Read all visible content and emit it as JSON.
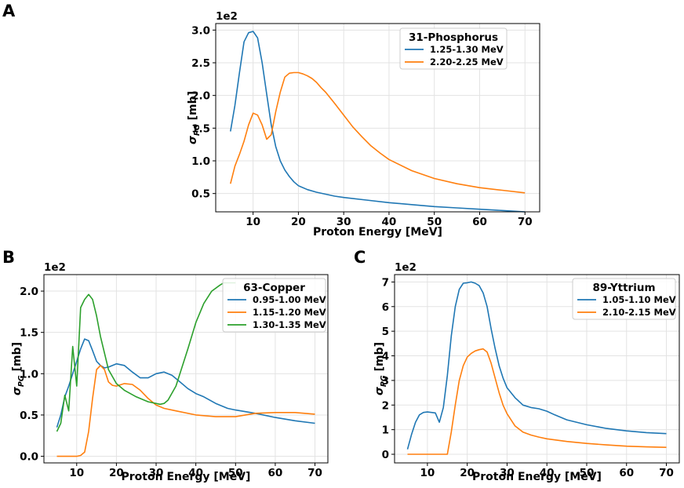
{
  "chart_data": [
    {
      "panel": "A",
      "type": "line",
      "title": "",
      "legend_title": "31-Phosphorus",
      "legend_location": "top-right",
      "xlabel": "Proton Energy [MeV]",
      "ylabel": "σ_PG [mb]",
      "ylabel_main": "σ",
      "ylabel_sub": "PG",
      "ylabel_unit": "[mb]",
      "multiplier": "1e2",
      "xlim": [
        1.75,
        73.25
      ],
      "ylim": [
        0.22,
        3.1
      ],
      "xticks": [
        10,
        20,
        30,
        40,
        50,
        60,
        70
      ],
      "yticks": [
        0.5,
        1.0,
        1.5,
        2.0,
        2.5,
        3.0
      ],
      "ytick_labels": [
        "0.5",
        "1.0",
        "1.5",
        "2.0",
        "2.5",
        "3.0"
      ],
      "grid": true,
      "series": [
        {
          "name": "1.25-1.30 MeV",
          "color": "#1f77b4",
          "x": [
            5,
            6,
            7,
            8,
            9,
            10,
            11,
            12,
            13,
            14,
            15,
            16,
            17,
            18,
            19,
            20,
            22,
            24,
            26,
            28,
            30,
            35,
            40,
            45,
            50,
            55,
            60,
            65,
            70
          ],
          "y": [
            1.45,
            1.85,
            2.35,
            2.82,
            2.96,
            2.98,
            2.88,
            2.5,
            2.02,
            1.55,
            1.22,
            1.0,
            0.86,
            0.76,
            0.68,
            0.62,
            0.56,
            0.52,
            0.49,
            0.46,
            0.44,
            0.4,
            0.36,
            0.33,
            0.3,
            0.28,
            0.26,
            0.24,
            0.22
          ]
        },
        {
          "name": "2.20-2.25 MeV",
          "color": "#ff7f0e",
          "x": [
            5,
            6,
            7,
            8,
            9,
            10,
            11,
            12,
            13,
            14,
            15,
            16,
            17,
            18,
            19,
            20,
            21,
            22,
            23,
            24,
            25,
            26,
            28,
            30,
            32,
            34,
            36,
            38,
            40,
            45,
            50,
            55,
            60,
            65,
            70
          ],
          "y": [
            0.65,
            0.92,
            1.1,
            1.3,
            1.55,
            1.73,
            1.7,
            1.55,
            1.33,
            1.4,
            1.75,
            2.05,
            2.28,
            2.34,
            2.35,
            2.35,
            2.33,
            2.3,
            2.26,
            2.2,
            2.12,
            2.05,
            1.88,
            1.7,
            1.52,
            1.37,
            1.23,
            1.12,
            1.02,
            0.85,
            0.73,
            0.65,
            0.59,
            0.55,
            0.51
          ]
        }
      ]
    },
    {
      "panel": "B",
      "type": "line",
      "title": "",
      "legend_title": "63-Copper",
      "legend_location": "top-right",
      "xlabel": "Proton Energy [MeV]",
      "ylabel": "σ_PG [mb]",
      "ylabel_main": "σ",
      "ylabel_sub": "PG",
      "ylabel_unit": "[mb]",
      "multiplier": "1e2",
      "xlim": [
        1.75,
        73.25
      ],
      "ylim": [
        -0.08,
        2.2
      ],
      "xticks": [
        10,
        20,
        30,
        40,
        50,
        60,
        70
      ],
      "yticks": [
        0.0,
        0.5,
        1.0,
        1.5,
        2.0
      ],
      "ytick_labels": [
        "0.0",
        "0.5",
        "1.0",
        "1.5",
        "2.0"
      ],
      "grid": true,
      "series": [
        {
          "name": "0.95-1.00 MeV",
          "color": "#1f77b4",
          "x": [
            5,
            6,
            7,
            8,
            9,
            10,
            11,
            12,
            13,
            14,
            15,
            16,
            17,
            18,
            20,
            22,
            24,
            26,
            28,
            30,
            32,
            34,
            36,
            38,
            40,
            42,
            45,
            48,
            50,
            55,
            60,
            65,
            70
          ],
          "y": [
            0.35,
            0.5,
            0.72,
            0.85,
            1.0,
            1.15,
            1.3,
            1.42,
            1.4,
            1.28,
            1.15,
            1.1,
            1.07,
            1.08,
            1.12,
            1.1,
            1.02,
            0.95,
            0.95,
            1.0,
            1.02,
            0.98,
            0.9,
            0.82,
            0.76,
            0.72,
            0.64,
            0.58,
            0.56,
            0.52,
            0.47,
            0.43,
            0.4
          ]
        },
        {
          "name": "1.15-1.20 MeV",
          "color": "#ff7f0e",
          "x": [
            5,
            6,
            7,
            8,
            9,
            10,
            11,
            12,
            13,
            14,
            15,
            16,
            17,
            18,
            19,
            20,
            22,
            24,
            26,
            28,
            30,
            32,
            35,
            40,
            45,
            50,
            55,
            60,
            65,
            70
          ],
          "y": [
            0.0,
            0.0,
            0.0,
            0.0,
            0.0,
            0.0,
            0.01,
            0.05,
            0.3,
            0.7,
            1.05,
            1.1,
            1.05,
            0.9,
            0.86,
            0.85,
            0.88,
            0.87,
            0.8,
            0.7,
            0.62,
            0.58,
            0.55,
            0.5,
            0.48,
            0.48,
            0.52,
            0.53,
            0.53,
            0.51
          ]
        },
        {
          "name": "1.30-1.35 MeV",
          "color": "#2ca02c",
          "x": [
            5,
            6,
            7,
            8,
            9,
            10,
            11,
            12,
            13,
            14,
            15,
            16,
            18,
            20,
            22,
            25,
            28,
            31,
            32,
            33,
            35,
            38,
            40,
            42,
            44,
            46,
            47,
            50
          ],
          "y": [
            0.3,
            0.4,
            0.74,
            0.55,
            1.33,
            0.85,
            1.8,
            1.9,
            1.96,
            1.9,
            1.7,
            1.45,
            1.05,
            0.88,
            0.8,
            0.72,
            0.66,
            0.63,
            0.64,
            0.68,
            0.85,
            1.3,
            1.62,
            1.85,
            2.0,
            2.07,
            2.1,
            2.1
          ]
        }
      ]
    },
    {
      "panel": "C",
      "type": "line",
      "title": "",
      "legend_title": "89-Yttrium",
      "legend_location": "top-right",
      "xlabel": "Proton Energy [MeV]",
      "ylabel": "σ_PG [mb]",
      "ylabel_main": "σ",
      "ylabel_sub": "PG",
      "ylabel_unit": "[mb]",
      "multiplier": "1e2",
      "xlim": [
        1.75,
        73.25
      ],
      "ylim": [
        -0.35,
        7.3
      ],
      "xticks": [
        10,
        20,
        30,
        40,
        50,
        60,
        70
      ],
      "yticks": [
        0,
        1,
        2,
        3,
        4,
        5,
        6,
        7
      ],
      "ytick_labels": [
        "0",
        "1",
        "2",
        "3",
        "4",
        "5",
        "6",
        "7"
      ],
      "grid": true,
      "series": [
        {
          "name": "1.05-1.10 MeV",
          "color": "#1f77b4",
          "x": [
            5,
            6,
            7,
            8,
            9,
            10,
            11,
            12,
            13,
            14,
            15,
            16,
            17,
            18,
            19,
            20,
            21,
            22,
            23,
            24,
            25,
            26,
            27,
            28,
            29,
            30,
            32,
            34,
            36,
            38,
            40,
            42,
            45,
            50,
            55,
            60,
            65,
            70
          ],
          "y": [
            0.2,
            0.8,
            1.3,
            1.6,
            1.7,
            1.72,
            1.7,
            1.68,
            1.3,
            1.9,
            3.2,
            4.8,
            6.0,
            6.7,
            6.95,
            6.97,
            7.0,
            6.95,
            6.85,
            6.55,
            6.0,
            5.1,
            4.3,
            3.6,
            3.1,
            2.7,
            2.3,
            2.0,
            1.9,
            1.85,
            1.75,
            1.6,
            1.4,
            1.2,
            1.05,
            0.95,
            0.88,
            0.84
          ]
        },
        {
          "name": "2.10-2.15 MeV",
          "color": "#ff7f0e",
          "x": [
            5,
            6,
            7,
            8,
            9,
            10,
            11,
            12,
            13,
            14,
            15,
            16,
            17,
            18,
            19,
            20,
            21,
            22,
            23,
            24,
            25,
            26,
            27,
            28,
            29,
            30,
            32,
            34,
            36,
            38,
            40,
            45,
            50,
            55,
            60,
            65,
            70
          ],
          "y": [
            0.0,
            0.0,
            0.0,
            0.0,
            0.0,
            0.0,
            0.0,
            0.0,
            0.0,
            0.0,
            0.0,
            0.9,
            2.0,
            3.0,
            3.6,
            3.95,
            4.1,
            4.2,
            4.25,
            4.28,
            4.15,
            3.7,
            3.1,
            2.5,
            2.0,
            1.65,
            1.15,
            0.9,
            0.78,
            0.7,
            0.63,
            0.52,
            0.44,
            0.38,
            0.33,
            0.3,
            0.28
          ]
        }
      ]
    }
  ]
}
